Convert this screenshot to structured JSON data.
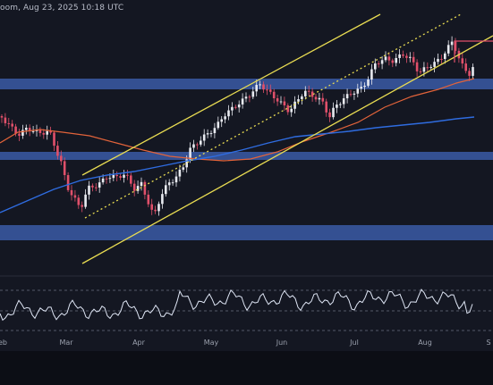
{
  "header": {
    "text": "oom, Aug 23, 2025 10:18 UTC"
  },
  "colors": {
    "background": "#141722",
    "candle_up": "#e8eaf0",
    "candle_down": "#e0506a",
    "channel_lines": "#e9dc52",
    "support_zones": "#3a5aa6",
    "ma_orange": "#e2633a",
    "ma_blue": "#2f6ce0",
    "rsi_line": "#dfe6f5",
    "red_box": "#e0506a"
  },
  "chart_data": {
    "type": "candlestick",
    "x_axis": {
      "labels": [
        "eb",
        "Mar",
        "Apr",
        "May",
        "Jun",
        "Jul",
        "Aug",
        "S"
      ]
    },
    "support_zones": [
      {
        "name": "zone-upper"
      },
      {
        "name": "zone-middle"
      },
      {
        "name": "zone-lower"
      }
    ],
    "grid": false,
    "rsi_panel": {
      "dashed_levels": [
        70,
        50,
        30
      ]
    }
  }
}
